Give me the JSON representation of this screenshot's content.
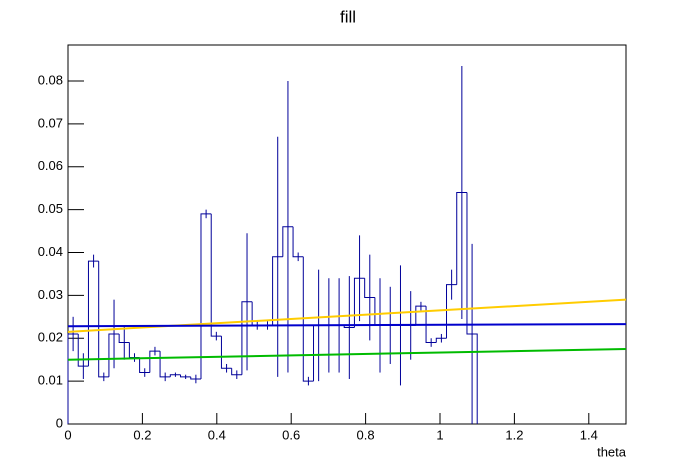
{
  "chart_data": {
    "type": "histogram",
    "title": "fill",
    "x_label": "theta",
    "bins": [
      0,
      0.0275,
      0.055,
      0.0825,
      0.11,
      0.1375,
      0.165,
      0.1925,
      0.22,
      0.2475,
      0.275,
      0.3025,
      0.33,
      0.3575,
      0.385,
      0.4125,
      0.44,
      0.4675,
      0.495,
      0.5225,
      0.55,
      0.5775,
      0.605,
      0.6325,
      0.66,
      0.6875,
      0.715,
      0.7425,
      0.77,
      0.7975,
      0.825,
      0.8525,
      0.88,
      0.9075,
      0.935,
      0.9625,
      0.99,
      1.0175,
      1.045,
      1.0725,
      1.1
    ],
    "values": [
      0.021,
      0.0135,
      0.038,
      0.011,
      0.021,
      0.019,
      0.0155,
      0.012,
      0.017,
      0.011,
      0.0115,
      0.011,
      0.0105,
      0.049,
      0.0205,
      0.013,
      0.0115,
      0.0285,
      0.023,
      0.023,
      0.039,
      0.046,
      0.039,
      0.01,
      0.023,
      0.023,
      0.023,
      0.0225,
      0.034,
      0.0295,
      0.023,
      0.023,
      0.023,
      0.023,
      0.0275,
      0.019,
      0.02,
      0.0325,
      0.054,
      0.021
    ],
    "errors": [
      0.004,
      0.003,
      0.0015,
      0.001,
      0.008,
      0.004,
      0.001,
      0.001,
      0.001,
      0.001,
      0.0005,
      0.0005,
      0.001,
      0.001,
      0.001,
      0.001,
      0.001,
      0.016,
      0.001,
      0.001,
      0.028,
      0.034,
      0.001,
      0.001,
      0.013,
      0.011,
      0.011,
      0.012,
      0.01,
      0.01,
      0.011,
      0.009,
      0.014,
      0.008,
      0.001,
      0.001,
      0.001,
      0.0035,
      0.0295,
      0.021
    ],
    "color": "#000099",
    "series": [
      {
        "color": "#ffcc00",
        "x": [
          0,
          1.5
        ],
        "values": [
          0.0215,
          0.029
        ]
      },
      {
        "color": "#0000cc",
        "x": [
          0,
          1.5
        ],
        "values": [
          0.0228,
          0.0233
        ]
      },
      {
        "color": "#00bb00",
        "x": [
          0,
          1.5
        ],
        "values": [
          0.015,
          0.0175
        ]
      }
    ],
    "xlim": [
      0,
      1.5
    ],
    "ylim": [
      0,
      0.0884
    ],
    "xticks": [
      0,
      0.2,
      0.4,
      0.6,
      0.8,
      1,
      1.2,
      1.4
    ],
    "yticks": [
      0,
      0.01,
      0.02,
      0.03,
      0.04,
      0.05,
      0.06,
      0.07,
      0.08
    ]
  }
}
